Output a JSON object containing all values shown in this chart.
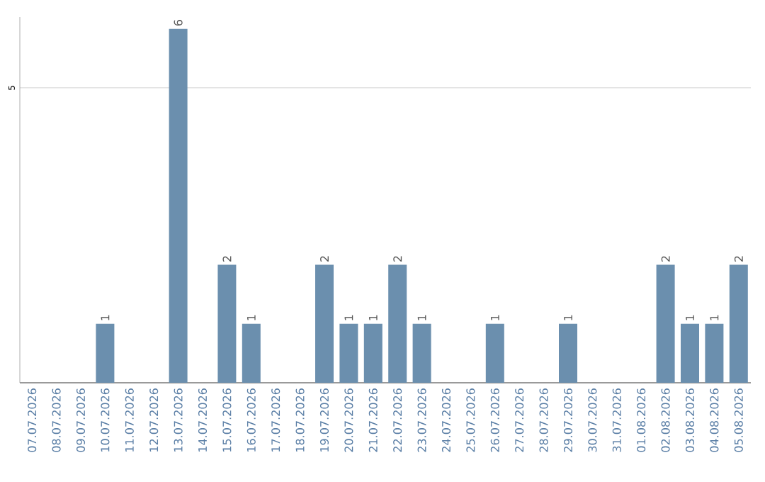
{
  "chart_data": {
    "type": "bar",
    "categories": [
      "07.07.2026",
      "08.07.2026",
      "09.07.2026",
      "10.07.2026",
      "11.07.2026",
      "12.07.2026",
      "13.07.2026",
      "14.07.2026",
      "15.07.2026",
      "16.07.2026",
      "17.07.2026",
      "18.07.2026",
      "19.07.2026",
      "20.07.2026",
      "21.07.2026",
      "22.07.2026",
      "23.07.2026",
      "24.07.2026",
      "25.07.2026",
      "26.07.2026",
      "27.07.2026",
      "28.07.2026",
      "29.07.2026",
      "30.07.2026",
      "31.07.2026",
      "01.08.2026",
      "02.08.2026",
      "03.08.2026",
      "04.08.2026",
      "05.08.2026"
    ],
    "values": [
      0,
      0,
      0,
      1,
      0,
      0,
      6,
      0,
      2,
      1,
      0,
      0,
      2,
      1,
      1,
      2,
      1,
      0,
      0,
      1,
      0,
      0,
      1,
      0,
      0,
      0,
      2,
      1,
      1,
      2
    ],
    "value_labels": [
      null,
      null,
      null,
      "1",
      null,
      null,
      "6",
      null,
      "2",
      "1",
      null,
      null,
      "2",
      "1",
      "1",
      "2",
      "1",
      null,
      null,
      "1",
      null,
      null,
      "1",
      null,
      null,
      null,
      "2",
      "1",
      "1",
      "2"
    ],
    "color": "#6b8fae",
    "ylim": [
      0,
      6.2
    ],
    "yticks": [
      5
    ],
    "grid": "y"
  }
}
